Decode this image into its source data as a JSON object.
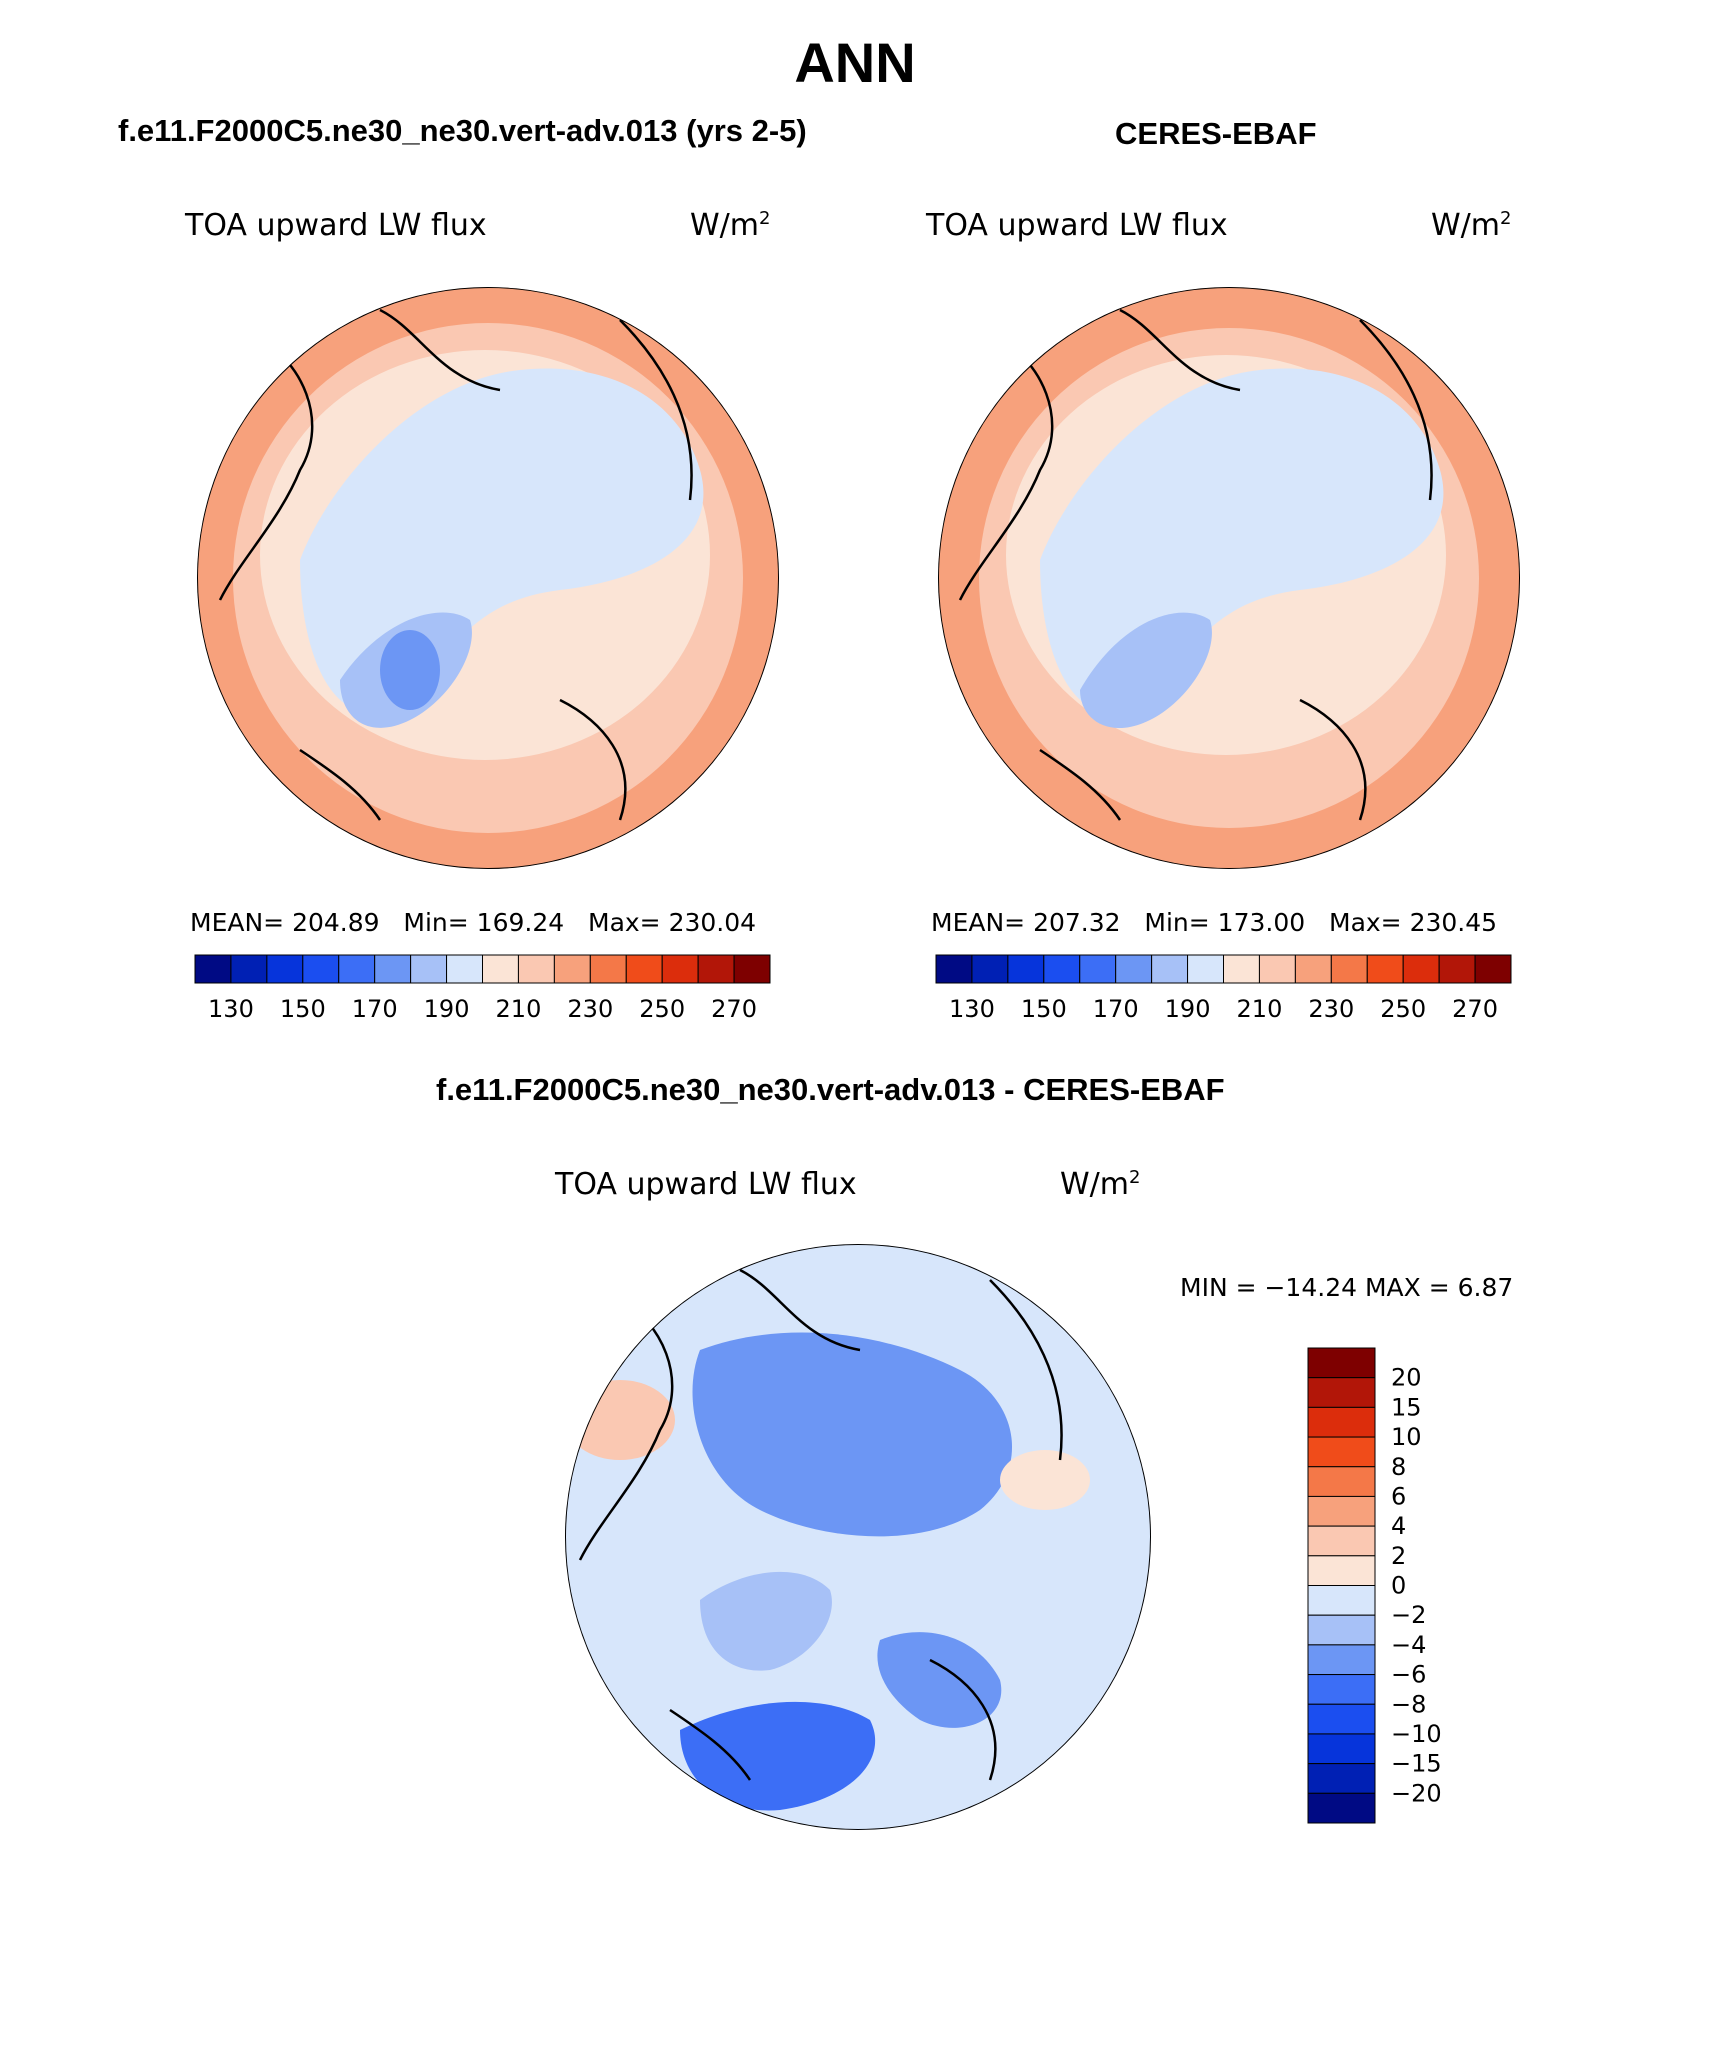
{
  "page": {
    "title": "ANN",
    "left_title": "f.e11.F2000C5.ne30_ne30.vert-adv.013 (yrs 2-5)",
    "right_title": "CERES-EBAF",
    "diff_title": "f.e11.F2000C5.ne30_ne30.vert-adv.013 - CERES-EBAF"
  },
  "panels": {
    "model": {
      "variable": "TOA upward LW flux",
      "units_base": "W/m",
      "units_exp": "2",
      "mean_label": "MEAN=",
      "mean": "204.89",
      "min_label": "Min=",
      "min": "169.24",
      "max_label": "Max=",
      "max": "230.04"
    },
    "obs": {
      "variable": "TOA upward LW flux",
      "units_base": "W/m",
      "units_exp": "2",
      "mean_label": "MEAN=",
      "mean": "207.32",
      "min_label": "Min=",
      "min": "173.00",
      "max_label": "Max=",
      "max": "230.45"
    },
    "diff": {
      "variable": "TOA upward LW flux",
      "units_base": "W/m",
      "units_exp": "2",
      "minmax_text": "MIN = −14.24 MAX =    6.87"
    }
  },
  "colorbars": {
    "abs_colors": [
      "#000a84",
      "#0020b4",
      "#0634db",
      "#1b4ef0",
      "#3c6ef6",
      "#6c96f4",
      "#a7c1f7",
      "#d7e6fb",
      "#fbe4d6",
      "#fac8b2",
      "#f7a17c",
      "#f47848",
      "#f04c1a",
      "#dc2d0c",
      "#b21608",
      "#7e0000"
    ],
    "abs_ticks": [
      "130",
      "150",
      "170",
      "190",
      "210",
      "230",
      "250",
      "270"
    ],
    "diff_colors": [
      "#000a84",
      "#0020b4",
      "#0634db",
      "#1b4ef0",
      "#3c6ef6",
      "#6c96f4",
      "#a7c1f7",
      "#d7e6fb",
      "#fbe4d6",
      "#fac8b2",
      "#f7a17c",
      "#f47848",
      "#f04c1a",
      "#dc2d0c",
      "#b21608",
      "#7e0000"
    ],
    "diff_ticks": [
      "20",
      "15",
      "10",
      "8",
      "6",
      "4",
      "2",
      "0",
      "−2",
      "−4",
      "−6",
      "−8",
      "−10",
      "−15",
      "−20"
    ]
  },
  "map_fill": {
    "ocean_warm": "#fbe4d6",
    "mid_warm": "#fac8b2",
    "outer_warm": "#f7a17c",
    "arctic": "#d7e6fb",
    "greenland": "#a7c1f7",
    "greenland_core": "#6c96f4",
    "diff_base": "#d7e6fb",
    "diff_mid": "#a7c1f7",
    "diff_strong": "#6c96f4",
    "diff_stronger": "#3c6ef6",
    "diff_warm": "#fbe4d6",
    "diff_warmer": "#fac8b2"
  }
}
